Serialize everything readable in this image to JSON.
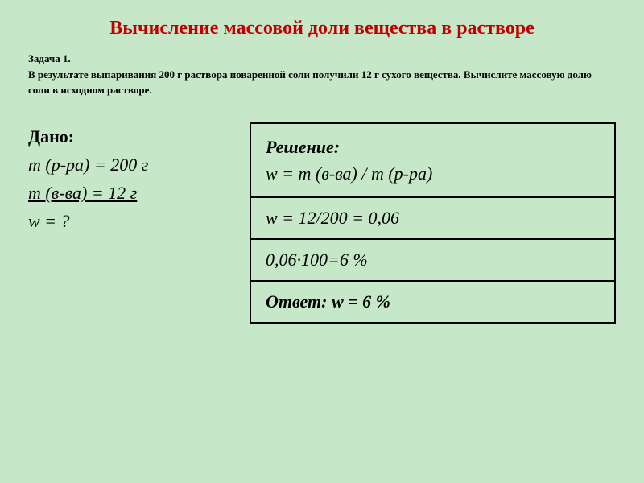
{
  "title": "Вычисление массовой доли вещества в растворе",
  "problem": {
    "heading": "Задача 1.",
    "text": "В результате выпаривания 200 г раствора поваренной соли получили 12 г сухого вещества. Вычислите массовую долю соли в исходном растворе."
  },
  "given": {
    "label": "Дано:",
    "line1": "m (р-ра) = 200 г",
    "line2": "m (в-ва) = 12 г",
    "line3": "w  = ?"
  },
  "solution": {
    "row1_label": "Решение:",
    "row1_formula": "w = m (в-ва) / m (р-ра)",
    "row2": "w = 12/200 = 0,06",
    "row3": "0,06·100=6 %",
    "row4": "Ответ: w = 6 %"
  },
  "colors": {
    "background": "#c7e7c9",
    "title": "#c00000",
    "text": "#000000",
    "border": "#000000"
  }
}
